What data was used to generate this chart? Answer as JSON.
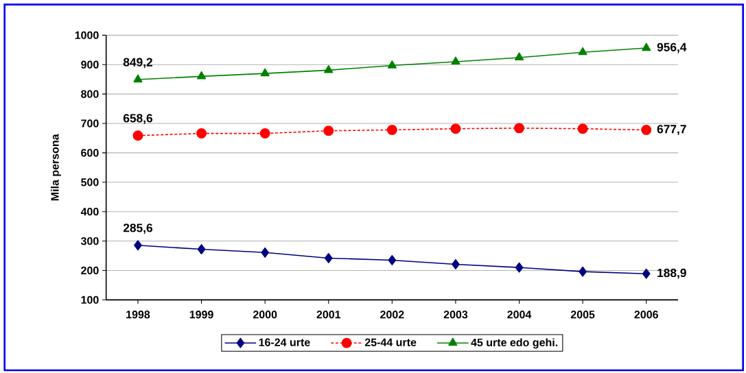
{
  "chart_data": {
    "type": "line",
    "ylabel": "Mila persona",
    "categories": [
      "1998",
      "1999",
      "2000",
      "2001",
      "2002",
      "2003",
      "2004",
      "2005",
      "2006"
    ],
    "ylim": [
      100,
      1000
    ],
    "yticks": [
      100,
      200,
      300,
      400,
      500,
      600,
      700,
      800,
      900,
      1000
    ],
    "grid": "y",
    "legend": "bottom",
    "series": [
      {
        "name": "16-24 urte",
        "color": "#000080",
        "marker": "diamond",
        "line_style": "solid",
        "values": [
          285.6,
          272,
          261,
          242,
          235,
          221,
          210,
          196,
          188.9
        ],
        "value_labels": [
          "285,6",
          null,
          null,
          null,
          null,
          null,
          null,
          null,
          "188,9"
        ]
      },
      {
        "name": "25-44 urte",
        "color": "#ff0000",
        "marker": "circle",
        "line_style": "dashed",
        "values": [
          658.6,
          666,
          666,
          675,
          678,
          682,
          684,
          682,
          677.7
        ],
        "value_labels": [
          "658,6",
          null,
          null,
          null,
          null,
          null,
          null,
          null,
          "677,7"
        ]
      },
      {
        "name": "45 urte edo gehi.",
        "color": "#008000",
        "marker": "triangle",
        "line_style": "solid",
        "values": [
          849.2,
          860,
          870,
          881,
          897,
          910,
          924,
          942,
          956.4
        ],
        "value_labels": [
          "849,2",
          null,
          null,
          null,
          null,
          null,
          null,
          null,
          "956,4"
        ]
      }
    ]
  }
}
